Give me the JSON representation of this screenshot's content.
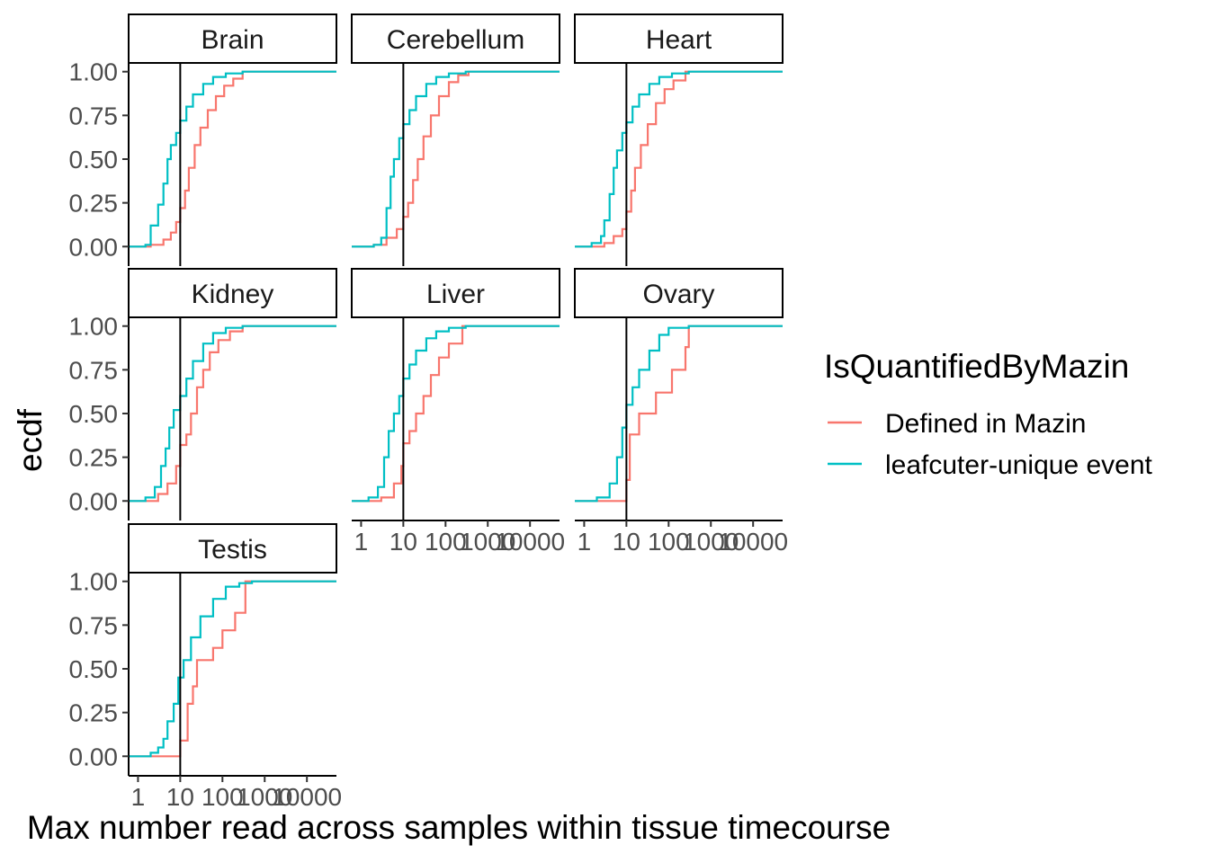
{
  "chart_data": {
    "type": "line",
    "subtype": "step-ecdf-facets",
    "xlabel": "Max number read across samples within tissue timecourse",
    "ylabel": "ecdf",
    "x_scale": "log10",
    "x_ticks": [
      "1",
      "10",
      "100",
      "1000",
      "10000"
    ],
    "x_tick_values": [
      1,
      10,
      100,
      1000,
      10000
    ],
    "xlim": [
      0.6,
      50000
    ],
    "y_ticks": [
      "0.00",
      "0.25",
      "0.50",
      "0.75",
      "1.00"
    ],
    "y_tick_values": [
      0,
      0.25,
      0.5,
      0.75,
      1.0
    ],
    "ylim": [
      -0.05,
      1.05
    ],
    "vline_x": 10,
    "grid": false,
    "legend": {
      "title": "IsQuantifiedByMazin",
      "position": "right",
      "entries": [
        {
          "name": "Defined in Mazin",
          "color": "#F8766D"
        },
        {
          "name": "leafcuter-unique event",
          "color": "#00BFC4"
        }
      ]
    },
    "facets": [
      {
        "name": "Brain",
        "series": [
          {
            "name": "Defined in Mazin",
            "points": [
              [
                0.6,
                0
              ],
              [
                2,
                0.01
              ],
              [
                4,
                0.04
              ],
              [
                6,
                0.08
              ],
              [
                8,
                0.14
              ],
              [
                10,
                0.22
              ],
              [
                13,
                0.32
              ],
              [
                16,
                0.45
              ],
              [
                22,
                0.58
              ],
              [
                30,
                0.68
              ],
              [
                45,
                0.78
              ],
              [
                70,
                0.86
              ],
              [
                110,
                0.92
              ],
              [
                180,
                0.96
              ],
              [
                300,
                1.0
              ],
              [
                50000,
                1.0
              ]
            ]
          },
          {
            "name": "leafcuter-unique event",
            "points": [
              [
                0.6,
                0
              ],
              [
                1.5,
                0.01
              ],
              [
                2,
                0.12
              ],
              [
                3,
                0.24
              ],
              [
                4,
                0.36
              ],
              [
                5,
                0.5
              ],
              [
                6,
                0.58
              ],
              [
                8,
                0.65
              ],
              [
                10,
                0.72
              ],
              [
                14,
                0.8
              ],
              [
                20,
                0.87
              ],
              [
                35,
                0.93
              ],
              [
                60,
                0.97
              ],
              [
                120,
                0.99
              ],
              [
                300,
                1.0
              ],
              [
                50000,
                1.0
              ]
            ]
          }
        ]
      },
      {
        "name": "Cerebellum",
        "series": [
          {
            "name": "Defined in Mazin",
            "points": [
              [
                0.6,
                0
              ],
              [
                2,
                0.01
              ],
              [
                4,
                0.05
              ],
              [
                7,
                0.1
              ],
              [
                10,
                0.17
              ],
              [
                13,
                0.25
              ],
              [
                17,
                0.38
              ],
              [
                22,
                0.5
              ],
              [
                30,
                0.63
              ],
              [
                45,
                0.75
              ],
              [
                70,
                0.86
              ],
              [
                120,
                0.94
              ],
              [
                200,
                0.98
              ],
              [
                350,
                1.0
              ],
              [
                50000,
                1.0
              ]
            ]
          },
          {
            "name": "leafcuter-unique event",
            "points": [
              [
                0.6,
                0
              ],
              [
                2,
                0.01
              ],
              [
                3,
                0.05
              ],
              [
                4,
                0.22
              ],
              [
                5,
                0.4
              ],
              [
                6,
                0.5
              ],
              [
                8,
                0.62
              ],
              [
                10,
                0.7
              ],
              [
                14,
                0.78
              ],
              [
                20,
                0.86
              ],
              [
                35,
                0.93
              ],
              [
                60,
                0.97
              ],
              [
                120,
                0.99
              ],
              [
                300,
                1.0
              ],
              [
                50000,
                1.0
              ]
            ]
          }
        ]
      },
      {
        "name": "Heart",
        "series": [
          {
            "name": "Defined in Mazin",
            "points": [
              [
                0.6,
                0
              ],
              [
                3,
                0.02
              ],
              [
                5,
                0.06
              ],
              [
                8,
                0.1
              ],
              [
                10,
                0.2
              ],
              [
                13,
                0.32
              ],
              [
                16,
                0.45
              ],
              [
                22,
                0.58
              ],
              [
                32,
                0.7
              ],
              [
                50,
                0.82
              ],
              [
                80,
                0.9
              ],
              [
                130,
                0.95
              ],
              [
                250,
                1.0
              ],
              [
                50000,
                1.0
              ]
            ]
          },
          {
            "name": "leafcuter-unique event",
            "points": [
              [
                0.6,
                0
              ],
              [
                1.5,
                0.02
              ],
              [
                2.5,
                0.06
              ],
              [
                3,
                0.15
              ],
              [
                4,
                0.3
              ],
              [
                5,
                0.45
              ],
              [
                6,
                0.55
              ],
              [
                8,
                0.65
              ],
              [
                10,
                0.71
              ],
              [
                14,
                0.8
              ],
              [
                20,
                0.87
              ],
              [
                35,
                0.93
              ],
              [
                60,
                0.97
              ],
              [
                120,
                0.99
              ],
              [
                300,
                1.0
              ],
              [
                50000,
                1.0
              ]
            ]
          }
        ]
      },
      {
        "name": "Kidney",
        "series": [
          {
            "name": "Defined in Mazin",
            "points": [
              [
                0.6,
                0
              ],
              [
                3,
                0.04
              ],
              [
                5,
                0.1
              ],
              [
                8,
                0.2
              ],
              [
                10,
                0.32
              ],
              [
                14,
                0.38
              ],
              [
                18,
                0.5
              ],
              [
                25,
                0.65
              ],
              [
                35,
                0.75
              ],
              [
                50,
                0.85
              ],
              [
                80,
                0.92
              ],
              [
                150,
                0.97
              ],
              [
                300,
                1.0
              ],
              [
                50000,
                1.0
              ]
            ]
          },
          {
            "name": "leafcuter-unique event",
            "points": [
              [
                0.6,
                0
              ],
              [
                1.5,
                0.02
              ],
              [
                2.5,
                0.08
              ],
              [
                3.5,
                0.2
              ],
              [
                4.5,
                0.3
              ],
              [
                5.5,
                0.42
              ],
              [
                7,
                0.52
              ],
              [
                10,
                0.6
              ],
              [
                14,
                0.7
              ],
              [
                20,
                0.8
              ],
              [
                35,
                0.9
              ],
              [
                60,
                0.96
              ],
              [
                120,
                0.99
              ],
              [
                300,
                1.0
              ],
              [
                50000,
                1.0
              ]
            ]
          }
        ]
      },
      {
        "name": "Liver",
        "series": [
          {
            "name": "Defined in Mazin",
            "points": [
              [
                0.6,
                0
              ],
              [
                3,
                0.02
              ],
              [
                6,
                0.1
              ],
              [
                9,
                0.2
              ],
              [
                10,
                0.33
              ],
              [
                14,
                0.4
              ],
              [
                20,
                0.5
              ],
              [
                30,
                0.6
              ],
              [
                45,
                0.72
              ],
              [
                70,
                0.82
              ],
              [
                120,
                0.9
              ],
              [
                250,
                1.0
              ],
              [
                50000,
                1.0
              ]
            ]
          },
          {
            "name": "leafcuter-unique event",
            "points": [
              [
                0.6,
                0
              ],
              [
                1.5,
                0.02
              ],
              [
                2.5,
                0.08
              ],
              [
                3.5,
                0.25
              ],
              [
                4.5,
                0.4
              ],
              [
                6,
                0.5
              ],
              [
                8,
                0.6
              ],
              [
                10,
                0.7
              ],
              [
                14,
                0.78
              ],
              [
                20,
                0.86
              ],
              [
                35,
                0.93
              ],
              [
                60,
                0.97
              ],
              [
                120,
                0.99
              ],
              [
                300,
                1.0
              ],
              [
                50000,
                1.0
              ]
            ]
          }
        ]
      },
      {
        "name": "Ovary",
        "series": [
          {
            "name": "Defined in Mazin",
            "points": [
              [
                0.6,
                0
              ],
              [
                10,
                0.12
              ],
              [
                12,
                0.38
              ],
              [
                20,
                0.5
              ],
              [
                50,
                0.62
              ],
              [
                120,
                0.75
              ],
              [
                250,
                0.88
              ],
              [
                300,
                1.0
              ],
              [
                50000,
                1.0
              ]
            ]
          },
          {
            "name": "leafcuter-unique event",
            "points": [
              [
                0.6,
                0
              ],
              [
                2,
                0.02
              ],
              [
                4,
                0.1
              ],
              [
                6,
                0.25
              ],
              [
                8,
                0.42
              ],
              [
                10,
                0.55
              ],
              [
                14,
                0.65
              ],
              [
                20,
                0.75
              ],
              [
                35,
                0.86
              ],
              [
                60,
                0.95
              ],
              [
                100,
                0.99
              ],
              [
                300,
                1.0
              ],
              [
                50000,
                1.0
              ]
            ]
          }
        ]
      },
      {
        "name": "Testis",
        "series": [
          {
            "name": "Defined in Mazin",
            "points": [
              [
                0.6,
                0
              ],
              [
                10,
                0.09
              ],
              [
                15,
                0.3
              ],
              [
                20,
                0.4
              ],
              [
                25,
                0.55
              ],
              [
                60,
                0.62
              ],
              [
                100,
                0.72
              ],
              [
                200,
                0.82
              ],
              [
                350,
                1.0
              ],
              [
                50000,
                1.0
              ]
            ]
          },
          {
            "name": "leafcuter-unique event",
            "points": [
              [
                0.6,
                0
              ],
              [
                2,
                0.02
              ],
              [
                3,
                0.05
              ],
              [
                4,
                0.1
              ],
              [
                5,
                0.2
              ],
              [
                7,
                0.3
              ],
              [
                9,
                0.45
              ],
              [
                12,
                0.55
              ],
              [
                18,
                0.68
              ],
              [
                30,
                0.8
              ],
              [
                60,
                0.9
              ],
              [
                120,
                0.97
              ],
              [
                250,
                0.99
              ],
              [
                500,
                1.0
              ],
              [
                50000,
                1.0
              ]
            ]
          }
        ]
      }
    ]
  }
}
